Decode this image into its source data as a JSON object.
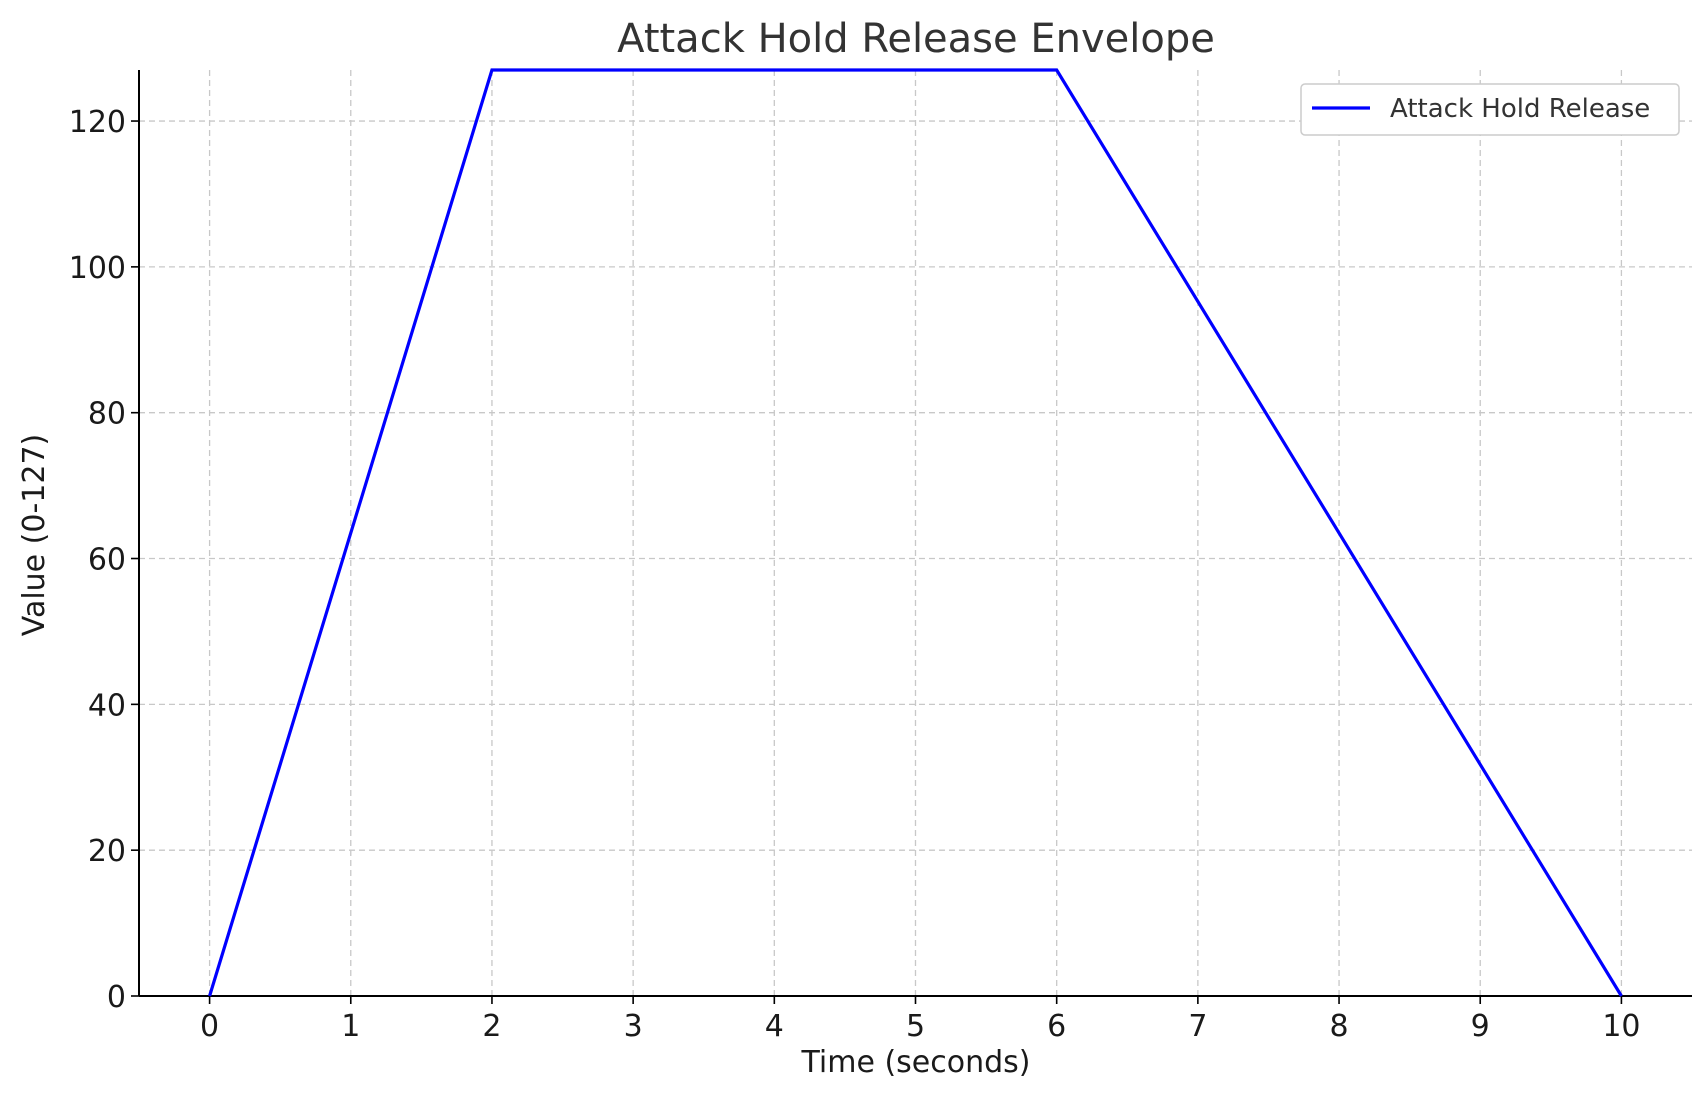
{
  "chart_data": {
    "type": "line",
    "title": "Attack Hold Release Envelope",
    "xlabel": "Time (seconds)",
    "ylabel": "Value (0-127)",
    "xlim": [
      -0.5,
      10.5
    ],
    "ylim": [
      0,
      127
    ],
    "xticks": [
      0,
      1,
      2,
      3,
      4,
      5,
      6,
      7,
      8,
      9,
      10
    ],
    "yticks": [
      0,
      20,
      40,
      60,
      80,
      100,
      120
    ],
    "grid": true,
    "legend_position": "top-right",
    "series": [
      {
        "name": "Attack Hold Release",
        "color": "#0000ff",
        "x": [
          0,
          2,
          6,
          10
        ],
        "y": [
          0,
          127,
          127,
          0
        ]
      }
    ]
  }
}
